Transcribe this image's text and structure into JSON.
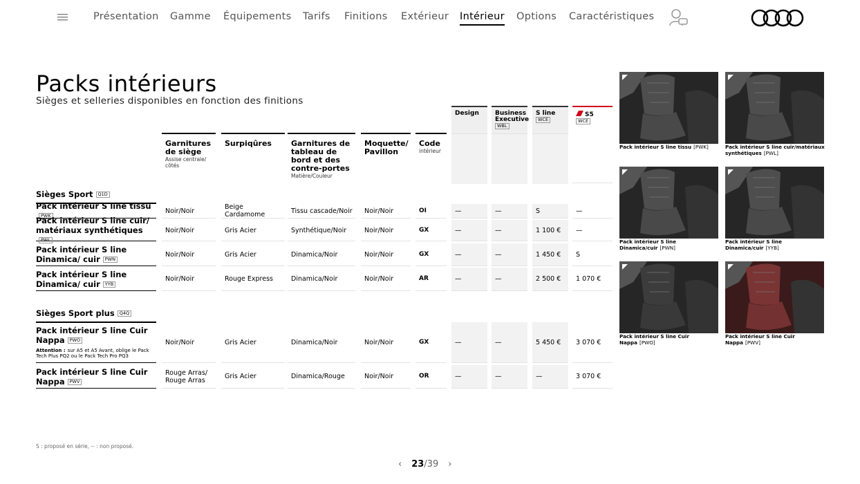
{
  "nav": {
    "items": [
      "Présentation",
      "Gamme",
      "Équipements",
      "Tarifs",
      "Finitions",
      "Extérieur",
      "Intérieur",
      "Options",
      "Caractéristiques"
    ],
    "active": 6
  },
  "header": {
    "title": "Packs intérieurs",
    "subtitle": "Sièges et selleries disponibles en fonction des finitions"
  },
  "table": {
    "trims": [
      {
        "label": "Design"
      },
      {
        "label": "Business Executive",
        "code": "WBL"
      },
      {
        "label": "S line",
        "code": "WCE"
      },
      {
        "label": "S5",
        "code": "WCE"
      }
    ],
    "columns": [
      {
        "label": "Garnitures de siège",
        "sub": "Assise centrale/ côtés"
      },
      {
        "label": "Surpiqûres"
      },
      {
        "label": "Garnitures de tableau de bord et des contre-portes",
        "sub": "Matière/Couleur"
      },
      {
        "label": "Moquette/ Pavillon"
      },
      {
        "label": "Code",
        "sub": "intérieur"
      }
    ],
    "groups": [
      {
        "label": "Sièges Sport",
        "code": "Q1D",
        "rows": [
          {
            "label": "Pack intérieur S line tissu",
            "code": "PWK",
            "cells": [
              "Noir/Noir",
              "Beige Cardamome",
              "Tissu cascade/Noir",
              "Noir/Noir",
              "OI",
              "—",
              "—",
              "S",
              "—"
            ]
          },
          {
            "label": "Pack intérieur S line cuir/ matériaux synthétiques",
            "code": "PWL",
            "cells": [
              "Noir/Noir",
              "Gris Acier",
              "Synthétique/Noir",
              "Noir/Noir",
              "GX",
              "—",
              "—",
              "1 100 €",
              "—"
            ]
          },
          {
            "label": "Pack intérieur S line Dinamica/ cuir",
            "code": "PWN",
            "cells": [
              "Noir/Noir",
              "Gris Acier",
              "Dinamica/Noir",
              "Noir/Noir",
              "GX",
              "—",
              "—",
              "1 450 €",
              "S"
            ]
          },
          {
            "label": "Pack intérieur S line Dinamica/ cuir",
            "code": "YYB",
            "cells": [
              "Noir/Noir",
              "Rouge Express",
              "Dinamica/Noir",
              "Noir/Noir",
              "AR",
              "—",
              "—",
              "2 500 €",
              "1 070 €"
            ]
          }
        ]
      },
      {
        "label": "Sièges Sport plus",
        "code": "Q4Q",
        "rows": [
          {
            "label": "Pack intérieur S line Cuir Nappa",
            "code": "PWO",
            "note_label": "Attention :",
            "note": "sur A5 et A5 Avant, oblige le Pack Tech Plus PQ2 ou le Pack Tech Pro PQ3",
            "cells": [
              "Noir/Noir",
              "Gris Acier",
              "Dinamica/Noir",
              "Noir/Noir",
              "GX",
              "—",
              "—",
              "5 450 €",
              "3 070 €"
            ]
          },
          {
            "label": "Pack intérieur S line Cuir Nappa",
            "code": "PWV",
            "cells": [
              "Rouge Arras/ Rouge Arras",
              "Gris Acier",
              "Dinamica/Rouge",
              "Noir/Noir",
              "OR",
              "—",
              "—",
              "—",
              "3 070 €"
            ]
          }
        ]
      }
    ]
  },
  "gallery": [
    {
      "caption": "Pack intérieur S line tissu",
      "code": "[PWK]"
    },
    {
      "caption": "Pack intérieur S line cuir/matériaux synthétiques",
      "code": "[PWL]"
    },
    {
      "caption": "Pack intérieur S line Dinamica/cuir",
      "code": "[PWN]"
    },
    {
      "caption": "Pack intérieur S line Dinamica/cuir",
      "code": "[YYB]"
    },
    {
      "caption": "Pack intérieur S line Cuir Nappa",
      "code": "[PWO]"
    },
    {
      "caption": "Pack intérieur S line Cuir Nappa",
      "code": "[PWV]"
    }
  ],
  "footnote": "S : proposé en série, -- : non proposé.",
  "pagination": {
    "current": 23,
    "separator": "/",
    "total": 39
  }
}
